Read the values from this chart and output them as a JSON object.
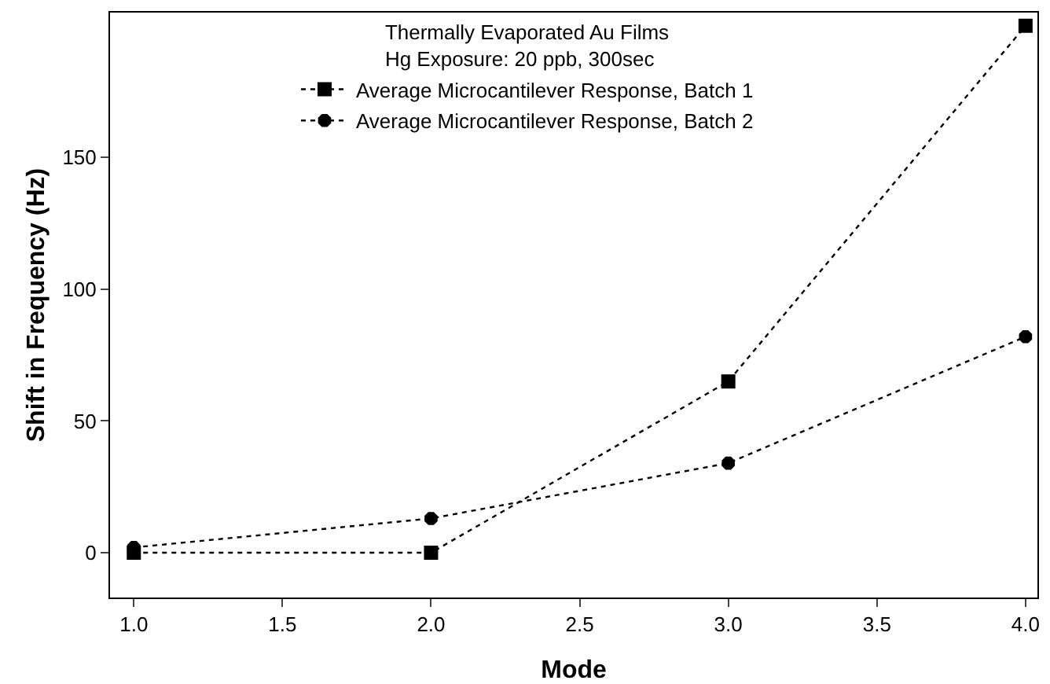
{
  "chart_data": {
    "type": "line",
    "xlabel": "Mode",
    "ylabel": "Shift in Frequency (Hz)",
    "legend_title": "Thermally Evaporated Au Films\nHg Exposure: 20 ppb, 300sec",
    "x": [
      1,
      2,
      3,
      4
    ],
    "series": [
      {
        "name": "Average Microcantilever Response, Batch 1",
        "color": "#000000",
        "values": [
          0,
          0,
          65,
          200
        ],
        "marker": "square"
      },
      {
        "name": "Average Microcantilever Response, Batch 2",
        "color": "#000000",
        "values": [
          2,
          13,
          34,
          82
        ],
        "marker": "circle"
      }
    ],
    "xlim": [
      0.92,
      4.04
    ],
    "xticks": [
      {
        "value": 1,
        "label": "1.0"
      },
      {
        "value": 1.5,
        "label": "1.5"
      },
      {
        "value": 2,
        "label": "2.0"
      },
      {
        "value": 2.5,
        "label": "2.5"
      },
      {
        "value": 3,
        "label": "3.0"
      },
      {
        "value": 3.5,
        "label": "3.5"
      },
      {
        "value": 4,
        "label": "4.0"
      }
    ],
    "ylim": [
      -17,
      205
    ],
    "yticks": [
      0,
      50,
      100,
      150
    ],
    "grid": false,
    "legend": "top",
    "line_style": "dotted"
  }
}
